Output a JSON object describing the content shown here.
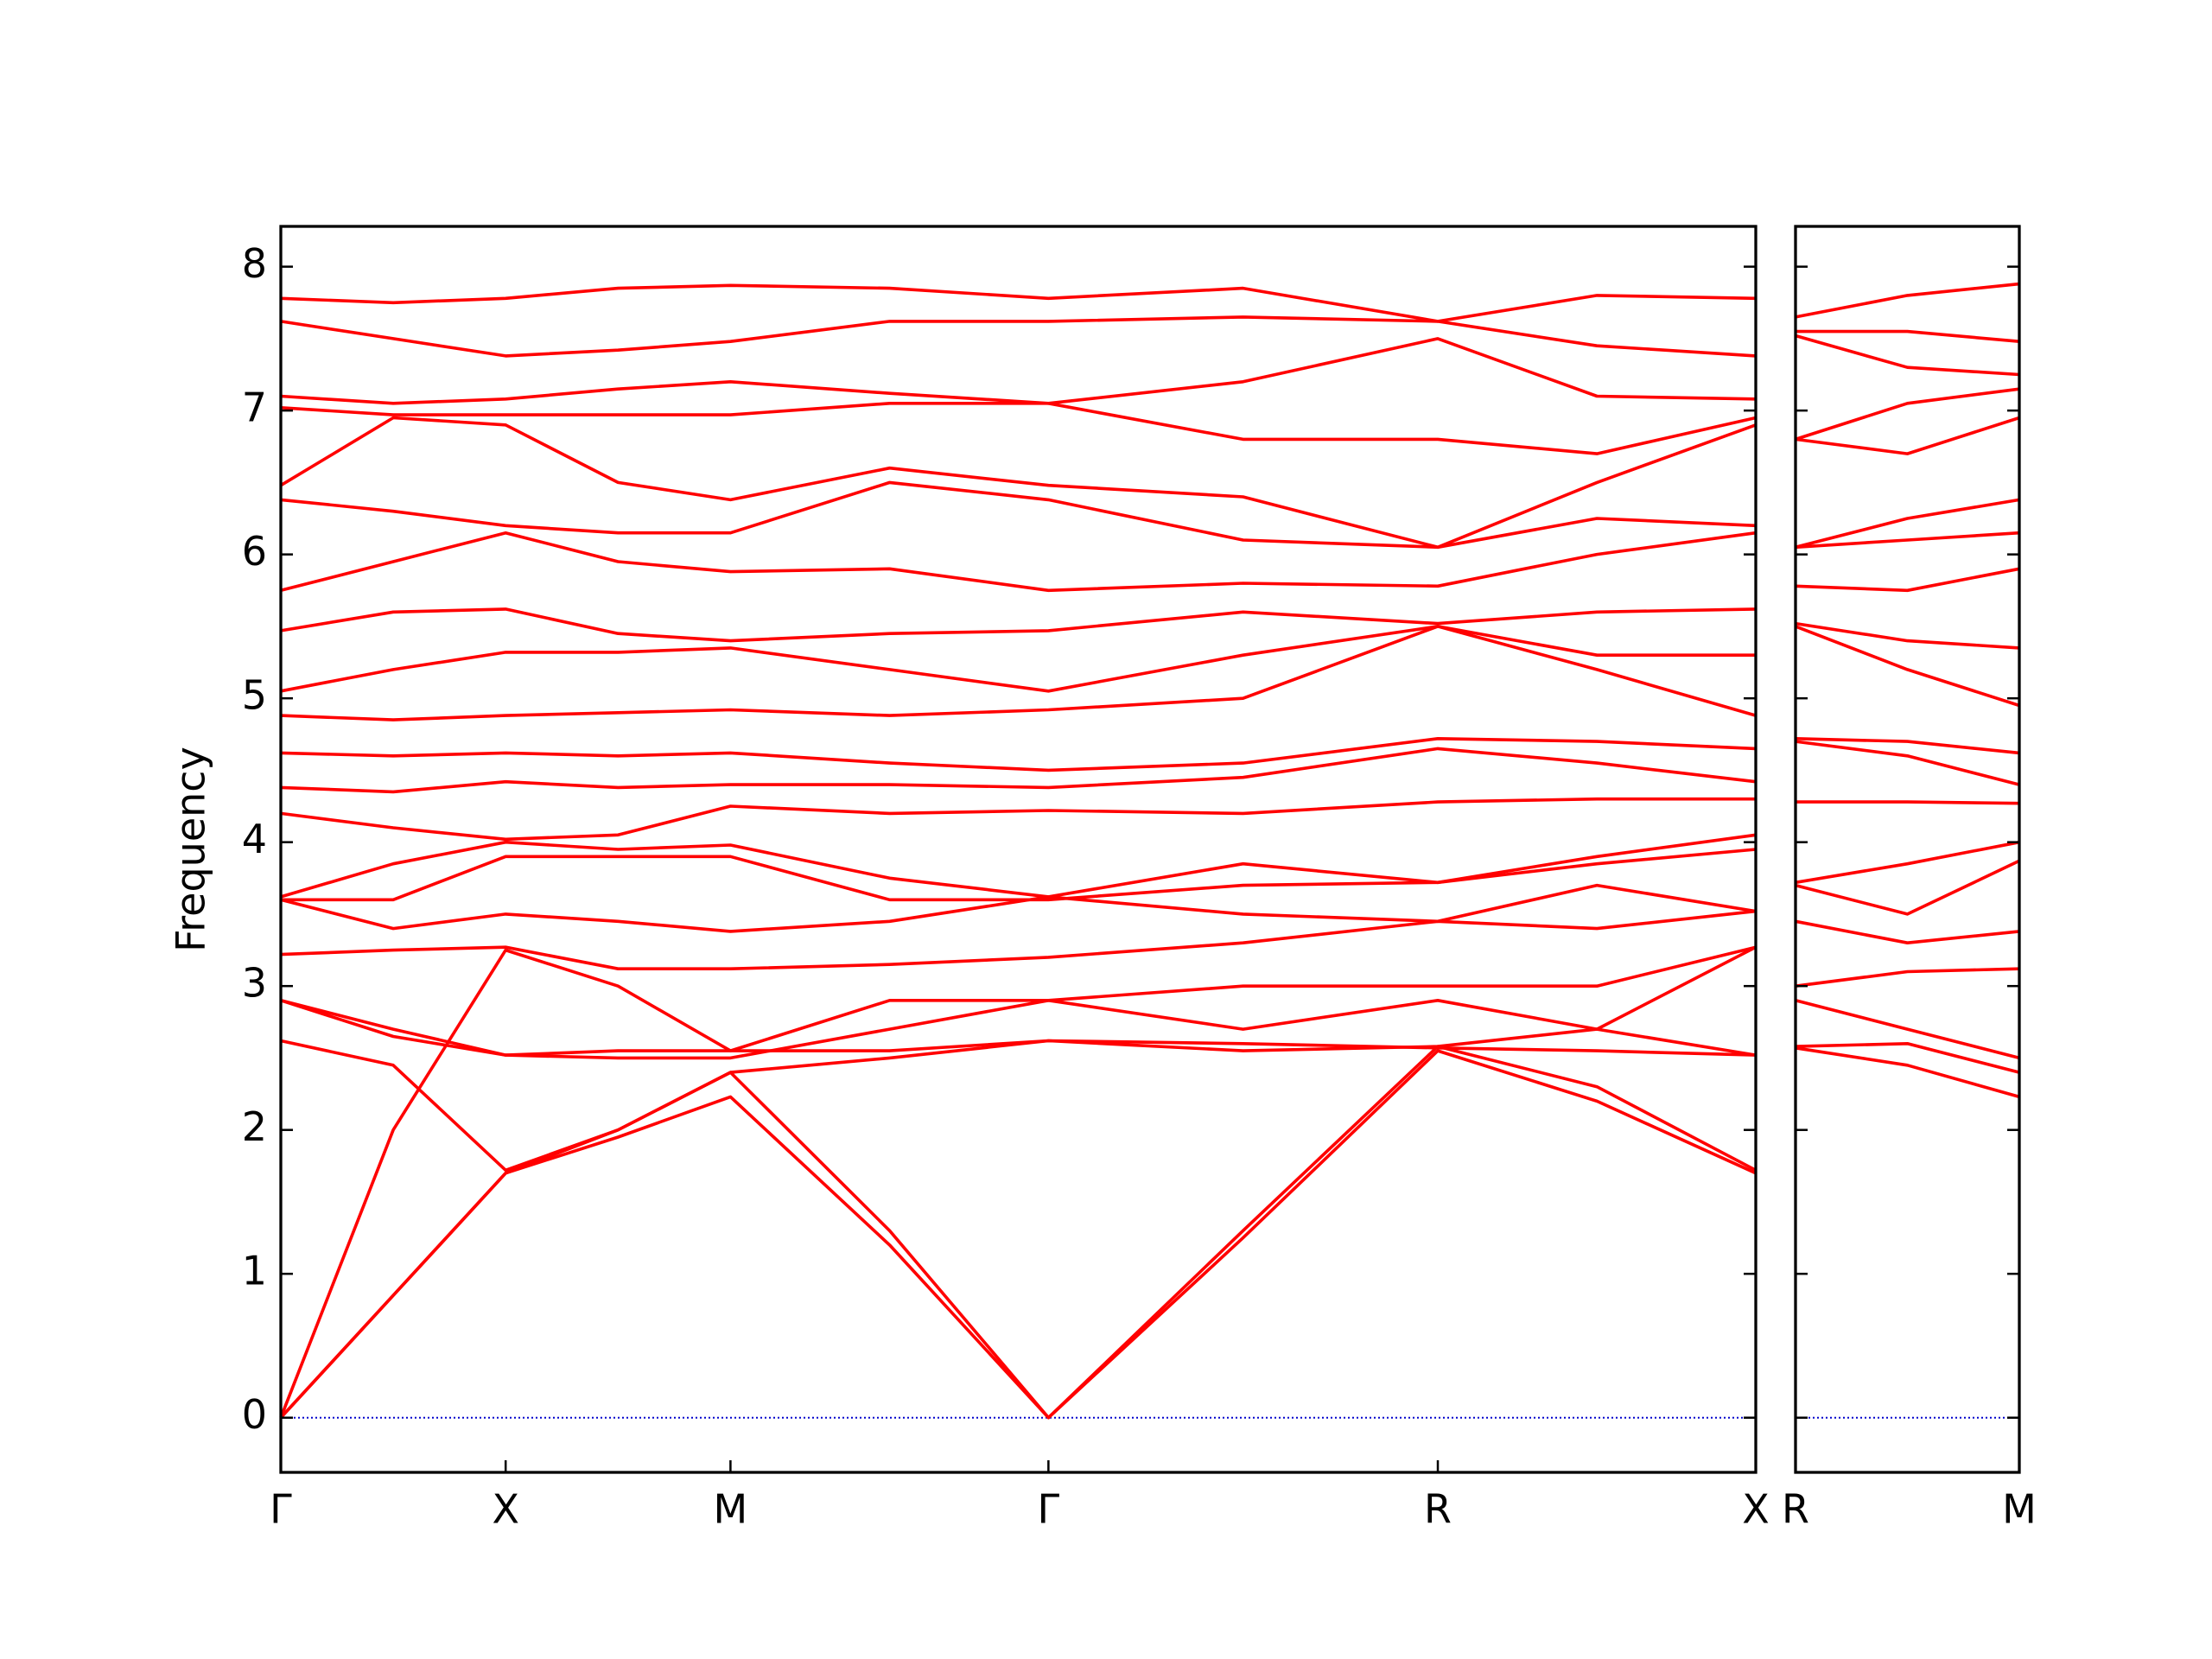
{
  "chart_data": [
    {
      "type": "line",
      "ylabel": "Frequency",
      "color": "#ff0000",
      "zero_line": {
        "value": 0,
        "color": "#0000cc"
      },
      "xlim": [
        0,
        3.2802
      ],
      "ylim": [
        -0.38,
        8.28
      ],
      "xticks": [
        {
          "value": 0,
          "label": "Γ"
        },
        {
          "value": 0.5,
          "label": "X"
        },
        {
          "value": 1.0,
          "label": "M"
        },
        {
          "value": 1.7071,
          "label": "Γ"
        },
        {
          "value": 2.5731,
          "label": "R"
        },
        {
          "value": 3.2802,
          "label": "X"
        }
      ],
      "yticks": [
        0,
        1,
        2,
        3,
        4,
        5,
        6,
        7,
        8
      ],
      "show_ytick_labels": true,
      "x": [
        0,
        0.25,
        0.5,
        0.75,
        1.0,
        1.354,
        1.7071,
        2.14,
        2.5731,
        2.927,
        3.2802
      ],
      "series": [
        {
          "values": [
            0,
            0.85,
            1.7,
            1.95,
            2.23,
            1.2,
            0,
            1.25,
            2.55,
            2.2,
            1.7
          ]
        },
        {
          "values": [
            0,
            0.85,
            1.7,
            2.0,
            2.4,
            1.3,
            0,
            1.3,
            2.58,
            2.3,
            1.72
          ]
        },
        {
          "values": [
            0,
            2.0,
            3.25,
            3.0,
            2.55,
            2.55,
            2.62,
            2.6,
            2.57,
            2.55,
            2.52
          ]
        },
        {
          "values": [
            2.62,
            2.45,
            1.72,
            2.0,
            2.4,
            2.5,
            2.62,
            2.55,
            2.58,
            2.7,
            2.52
          ]
        },
        {
          "values": [
            2.9,
            2.7,
            2.52,
            2.5,
            2.5,
            2.7,
            2.9,
            2.7,
            2.9,
            2.7,
            3.27
          ]
        },
        {
          "values": [
            2.9,
            2.65,
            2.52,
            2.55,
            2.55,
            2.9,
            2.9,
            3.0,
            3.0,
            3.0,
            3.27
          ]
        },
        {
          "values": [
            3.22,
            3.25,
            3.27,
            3.12,
            3.12,
            3.15,
            3.2,
            3.3,
            3.45,
            3.4,
            3.52
          ]
        },
        {
          "values": [
            3.6,
            3.4,
            3.5,
            3.45,
            3.38,
            3.45,
            3.62,
            3.5,
            3.45,
            3.7,
            3.52
          ]
        },
        {
          "values": [
            3.6,
            3.6,
            3.9,
            3.9,
            3.9,
            3.6,
            3.6,
            3.7,
            3.72,
            3.85,
            3.95
          ]
        },
        {
          "values": [
            3.62,
            3.85,
            4.0,
            3.95,
            3.98,
            3.75,
            3.62,
            3.85,
            3.72,
            3.9,
            4.05
          ]
        },
        {
          "values": [
            4.2,
            4.1,
            4.02,
            4.05,
            4.25,
            4.2,
            4.22,
            4.2,
            4.28,
            4.3,
            4.3
          ]
        },
        {
          "values": [
            4.38,
            4.35,
            4.42,
            4.38,
            4.4,
            4.4,
            4.38,
            4.45,
            4.65,
            4.55,
            4.42
          ]
        },
        {
          "values": [
            4.62,
            4.6,
            4.62,
            4.6,
            4.62,
            4.55,
            4.5,
            4.55,
            4.72,
            4.7,
            4.65
          ]
        },
        {
          "values": [
            4.88,
            4.85,
            4.88,
            4.9,
            4.92,
            4.88,
            4.92,
            5.0,
            5.5,
            5.2,
            4.88
          ]
        },
        {
          "values": [
            5.05,
            5.2,
            5.32,
            5.32,
            5.35,
            5.2,
            5.05,
            5.3,
            5.5,
            5.3,
            5.3
          ]
        },
        {
          "values": [
            5.47,
            5.6,
            5.62,
            5.45,
            5.4,
            5.45,
            5.47,
            5.6,
            5.52,
            5.6,
            5.62
          ]
        },
        {
          "values": [
            5.75,
            5.95,
            6.15,
            5.95,
            5.88,
            5.9,
            5.75,
            5.8,
            5.78,
            6.0,
            6.15
          ]
        },
        {
          "values": [
            6.38,
            6.3,
            6.2,
            6.15,
            6.15,
            6.5,
            6.38,
            6.1,
            6.05,
            6.25,
            6.2
          ]
        },
        {
          "values": [
            6.48,
            6.95,
            6.9,
            6.5,
            6.38,
            6.6,
            6.48,
            6.4,
            6.05,
            6.5,
            6.9
          ]
        },
        {
          "values": [
            7.02,
            6.97,
            6.97,
            6.97,
            6.97,
            7.05,
            7.05,
            6.8,
            6.8,
            6.7,
            6.95
          ]
        },
        {
          "values": [
            7.1,
            7.05,
            7.08,
            7.15,
            7.2,
            7.12,
            7.05,
            7.2,
            7.5,
            7.1,
            7.08
          ]
        },
        {
          "values": [
            7.62,
            7.5,
            7.38,
            7.42,
            7.48,
            7.62,
            7.62,
            7.65,
            7.62,
            7.45,
            7.38
          ]
        },
        {
          "values": [
            7.78,
            7.75,
            7.78,
            7.85,
            7.87,
            7.85,
            7.78,
            7.85,
            7.62,
            7.8,
            7.78
          ]
        }
      ]
    },
    {
      "type": "line",
      "color": "#ff0000",
      "zero_line": {
        "value": 0,
        "color": "#0000cc"
      },
      "xlim": [
        0,
        0.5
      ],
      "ylim": [
        -0.38,
        8.28
      ],
      "xticks": [
        {
          "value": 0,
          "label": "R"
        },
        {
          "value": 0.5,
          "label": "M"
        }
      ],
      "yticks": [
        0,
        1,
        2,
        3,
        4,
        5,
        6,
        7,
        8
      ],
      "show_ytick_labels": false,
      "x": [
        0,
        0.25,
        0.5
      ],
      "series": [
        {
          "values": [
            2.57,
            2.45,
            2.23
          ]
        },
        {
          "values": [
            2.58,
            2.6,
            2.4
          ]
        },
        {
          "values": [
            2.9,
            2.7,
            2.5
          ]
        },
        {
          "values": [
            3.0,
            3.1,
            3.12
          ]
        },
        {
          "values": [
            3.45,
            3.3,
            3.38
          ]
        },
        {
          "values": [
            3.7,
            3.5,
            3.87
          ]
        },
        {
          "values": [
            3.72,
            3.85,
            4.0
          ]
        },
        {
          "values": [
            4.28,
            4.28,
            4.27
          ]
        },
        {
          "values": [
            4.7,
            4.6,
            4.4
          ]
        },
        {
          "values": [
            4.72,
            4.7,
            4.62
          ]
        },
        {
          "values": [
            5.5,
            5.2,
            4.95
          ]
        },
        {
          "values": [
            5.52,
            5.4,
            5.35
          ]
        },
        {
          "values": [
            5.78,
            5.75,
            5.9
          ]
        },
        {
          "values": [
            6.05,
            6.1,
            6.15
          ]
        },
        {
          "values": [
            6.05,
            6.25,
            6.38
          ]
        },
        {
          "values": [
            6.8,
            6.7,
            6.95
          ]
        },
        {
          "values": [
            6.8,
            7.05,
            7.15
          ]
        },
        {
          "values": [
            7.52,
            7.3,
            7.25
          ]
        },
        {
          "values": [
            7.55,
            7.55,
            7.48
          ]
        },
        {
          "values": [
            7.65,
            7.8,
            7.88
          ]
        }
      ]
    }
  ]
}
